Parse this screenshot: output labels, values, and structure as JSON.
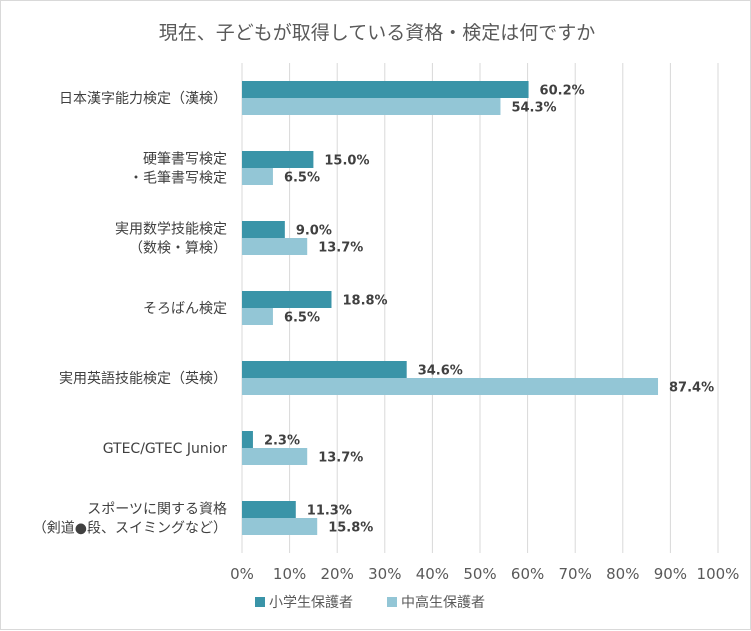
{
  "chart_data": {
    "type": "bar",
    "orientation": "horizontal",
    "title": "現在、子どもが取得している資格・検定は何ですか",
    "categories": [
      [
        "日本漢字能力検定（漢検）"
      ],
      [
        "硬筆書写検定",
        "・毛筆書写検定"
      ],
      [
        "実用数学技能検定",
        "（数検・算検）"
      ],
      [
        "そろばん検定"
      ],
      [
        "実用英語技能検定（英検）"
      ],
      [
        "GTEC/GTEC Junior"
      ],
      [
        "スポーツに関する資格",
        "（剣道●段、スイミングなど）"
      ]
    ],
    "series": [
      {
        "name": "小学生保護者",
        "color": "#3a94a8",
        "values": [
          60.2,
          15.0,
          9.0,
          18.8,
          34.6,
          2.3,
          11.3
        ]
      },
      {
        "name": "中高生保護者",
        "color": "#93c6d6",
        "values": [
          54.3,
          6.5,
          13.7,
          6.5,
          87.4,
          13.7,
          15.8
        ]
      }
    ],
    "xlim": [
      0,
      100
    ],
    "xticks": [
      0,
      10,
      20,
      30,
      40,
      50,
      60,
      70,
      80,
      90,
      100
    ],
    "tick_suffix": "%",
    "value_suffix": "%",
    "grid": true,
    "legend_position": "bottom"
  }
}
